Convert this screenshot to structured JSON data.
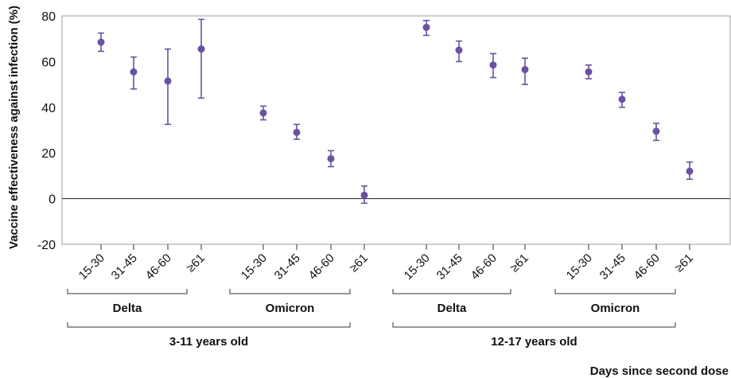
{
  "chart_data": {
    "type": "scatter",
    "ylabel": "Vaccine effectiveness against infection (%)",
    "xlabel": "Days since second dose",
    "ylim": [
      -20,
      80
    ],
    "yticks": [
      -20,
      0,
      20,
      40,
      60,
      80
    ],
    "zero_line": true,
    "grid": false,
    "marker_color": "#6a52a3",
    "categories": [
      "15-30",
      "31-45",
      "46-60",
      "≥61",
      "15-30",
      "31-45",
      "46-60",
      "≥61",
      "15-30",
      "31-45",
      "46-60",
      "≥61",
      "15-30",
      "31-45",
      "46-60",
      "≥61"
    ],
    "values": [
      68.5,
      55.5,
      51.5,
      65.5,
      37.5,
      29.0,
      17.5,
      1.5,
      75.0,
      65.0,
      58.5,
      56.5,
      55.5,
      43.5,
      29.5,
      12.0
    ],
    "ci_low": [
      64.5,
      48.0,
      32.5,
      44.0,
      34.5,
      26.0,
      14.0,
      -2.0,
      71.5,
      60.0,
      53.0,
      50.0,
      52.5,
      40.0,
      25.5,
      8.5
    ],
    "ci_high": [
      72.5,
      62.0,
      65.5,
      78.5,
      40.5,
      32.5,
      21.0,
      5.5,
      78.0,
      69.0,
      63.5,
      61.5,
      58.5,
      46.5,
      33.0,
      16.0
    ],
    "variant_groups": [
      {
        "label": "Delta",
        "start": 0,
        "end": 3
      },
      {
        "label": "Omicron",
        "start": 4,
        "end": 7
      },
      {
        "label": "Delta",
        "start": 8,
        "end": 11
      },
      {
        "label": "Omicron",
        "start": 12,
        "end": 15
      }
    ],
    "age_groups": [
      {
        "label": "3-11 years old",
        "start": 0,
        "end": 7
      },
      {
        "label": "12-17 years old",
        "start": 8,
        "end": 15
      }
    ]
  }
}
